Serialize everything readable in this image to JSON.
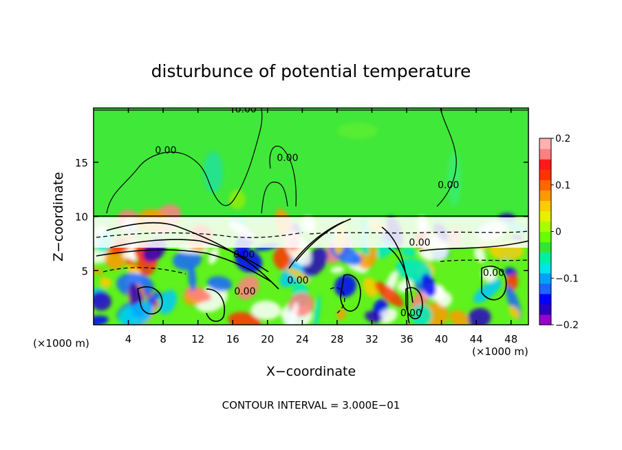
{
  "chart_data": {
    "type": "heatmap",
    "title": "disturbunce of potential temperature",
    "xlabel": "X−coordinate",
    "ylabel": "Z−coordinate",
    "x_unit_left": "(×1000 m)",
    "x_unit_right": "(×1000 m)",
    "xlim": [
      0,
      50
    ],
    "ylim": [
      0,
      20
    ],
    "x_ticks": [
      4,
      8,
      12,
      16,
      20,
      24,
      28,
      32,
      36,
      40,
      44,
      48
    ],
    "y_ticks": [
      5,
      10,
      15
    ],
    "colorbar": {
      "range": [
        -0.2,
        0.2
      ],
      "ticks": [
        {
          "value": 0.2,
          "label": "0.2"
        },
        {
          "value": 0.1,
          "label": "0.1"
        },
        {
          "value": 0,
          "label": "0"
        },
        {
          "value": -0.1,
          "label": "−0.1"
        },
        {
          "value": -0.2,
          "label": "−0.2"
        }
      ],
      "colors": [
        "#9900cc",
        "#2b00c0",
        "#0000ff",
        "#1a66ff",
        "#00a0ff",
        "#00e6e6",
        "#00f0a0",
        "#33e633",
        "#66ff00",
        "#a8ff00",
        "#e6f000",
        "#ffcc00",
        "#ff9900",
        "#ff6600",
        "#ff3300",
        "#ff1a1a",
        "#ff8080",
        "#ffb0b0"
      ]
    },
    "contour_labels": [
      {
        "x": 17.5,
        "y": 19.6,
        "text": "0.00"
      },
      {
        "x": 8.3,
        "y": 15.8,
        "text": "0.00"
      },
      {
        "x": 22.3,
        "y": 15.1,
        "text": "0.00"
      },
      {
        "x": 40.8,
        "y": 12.6,
        "text": "0.00"
      },
      {
        "x": 17.3,
        "y": 6.2,
        "text": "0.00"
      },
      {
        "x": 17.4,
        "y": 2.8,
        "text": "0.00"
      },
      {
        "x": 23.5,
        "y": 3.8,
        "text": "0.00"
      },
      {
        "x": 36.5,
        "y": 0.8,
        "text": "0.00"
      },
      {
        "x": 46.0,
        "y": 4.5,
        "text": "0.00"
      },
      {
        "x": 37.5,
        "y": 7.3,
        "text": "0.00"
      }
    ],
    "footer": "CONTOUR INTERVAL = 3.000E−01"
  }
}
